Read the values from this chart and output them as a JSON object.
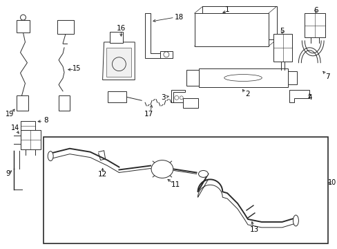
{
  "background_color": "#ffffff",
  "line_color": "#2a2a2a",
  "fig_width": 4.89,
  "fig_height": 3.6,
  "dpi": 100
}
